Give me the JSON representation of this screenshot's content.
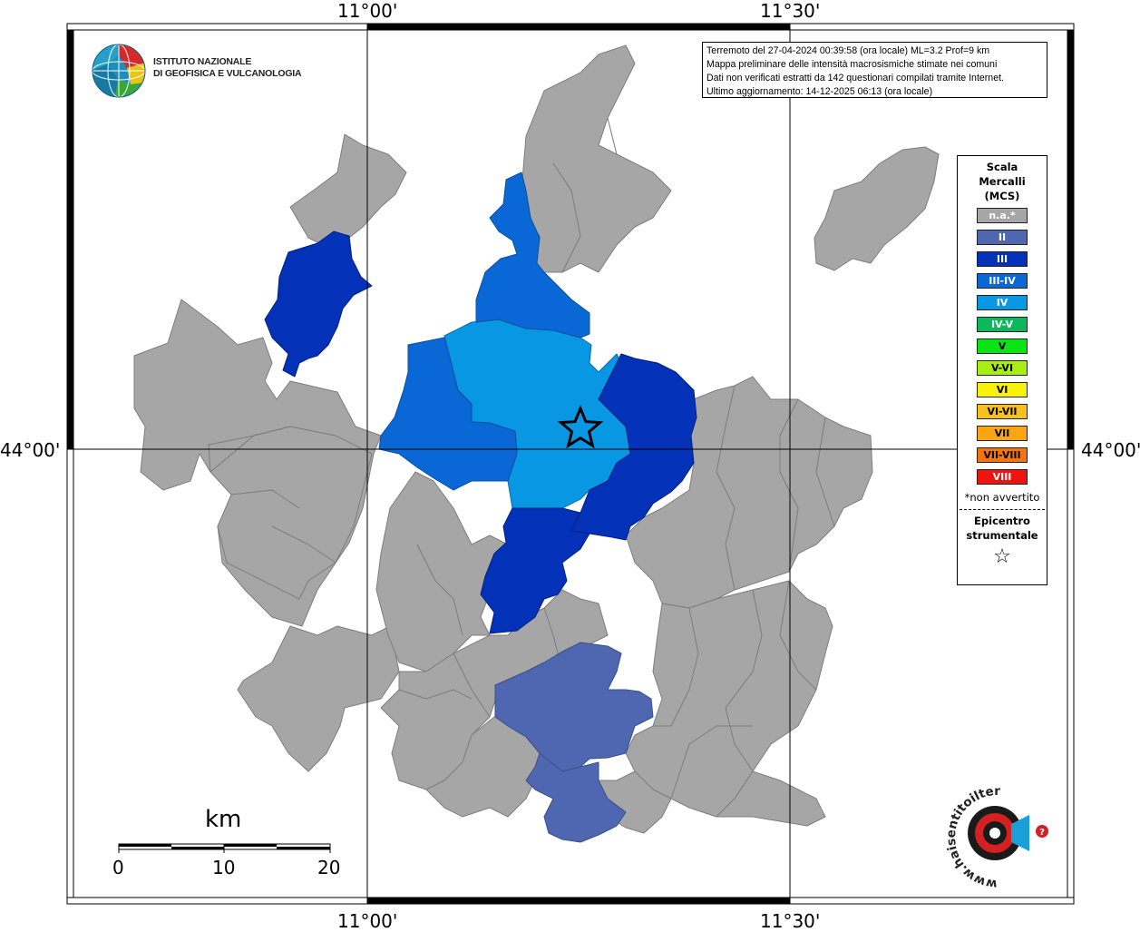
{
  "map": {
    "coords": {
      "top_left": "11°00'",
      "top_right": "11°30'",
      "bottom_left": "11°00'",
      "bottom_right": "11°30'",
      "left_lat": "44°00'",
      "right_lat": "44°00'"
    },
    "info_lines": [
      "Terremoto del 27-04-2024 00:39:58 (ora locale) ML=3.2 Prof=9 km",
      "Mappa preliminare delle intensità macrosismiche stimate nei comuni",
      "Dati non verificati estratti da 142 questionari compilati tramite Internet.",
      "Ultimo aggiornamento: 14-12-2025 06:13 (ora locale)"
    ],
    "ingv_logo": {
      "line1": "ISTITUTO NAZIONALE",
      "line2": "DI GEOFISICA E VULCANOLOGIA"
    },
    "scale": {
      "unit": "km",
      "labels": [
        "0",
        "10",
        "20"
      ]
    },
    "hs_logo": {
      "text": "www.haisentitoilterremoto.it"
    },
    "colors": {
      "na": "#a6a6a6",
      "II": "#4f67b0",
      "III": "#0331b8",
      "III-IV": "#0a68d6",
      "IV": "#0897e3"
    }
  },
  "legend": {
    "title_line1": "Scala",
    "title_line2": "Mercalli",
    "title_line3": "(MCS)",
    "items": [
      {
        "label": "n.a.*",
        "color": "#a6a6a6",
        "dark": false
      },
      {
        "label": "II",
        "color": "#4f67b0",
        "dark": false
      },
      {
        "label": "III",
        "color": "#0331b8",
        "dark": false
      },
      {
        "label": "III-IV",
        "color": "#0a68d6",
        "dark": false
      },
      {
        "label": "IV",
        "color": "#0897e3",
        "dark": false
      },
      {
        "label": "IV-V",
        "color": "#0cb85c",
        "dark": false
      },
      {
        "label": "V",
        "color": "#08e414",
        "dark": true
      },
      {
        "label": "V-VI",
        "color": "#a8ee14",
        "dark": true
      },
      {
        "label": "VI",
        "color": "#f8f20a",
        "dark": true
      },
      {
        "label": "VI-VII",
        "color": "#f8c01c",
        "dark": true
      },
      {
        "label": "VII",
        "color": "#f9a612",
        "dark": true
      },
      {
        "label": "VII-VIII",
        "color": "#f5740f",
        "dark": true
      },
      {
        "label": "VIII",
        "color": "#f01410",
        "dark": false
      }
    ],
    "note": "*non avvertito",
    "epicenter_line1": "Epicentro",
    "epicenter_line2": "strumentale"
  }
}
